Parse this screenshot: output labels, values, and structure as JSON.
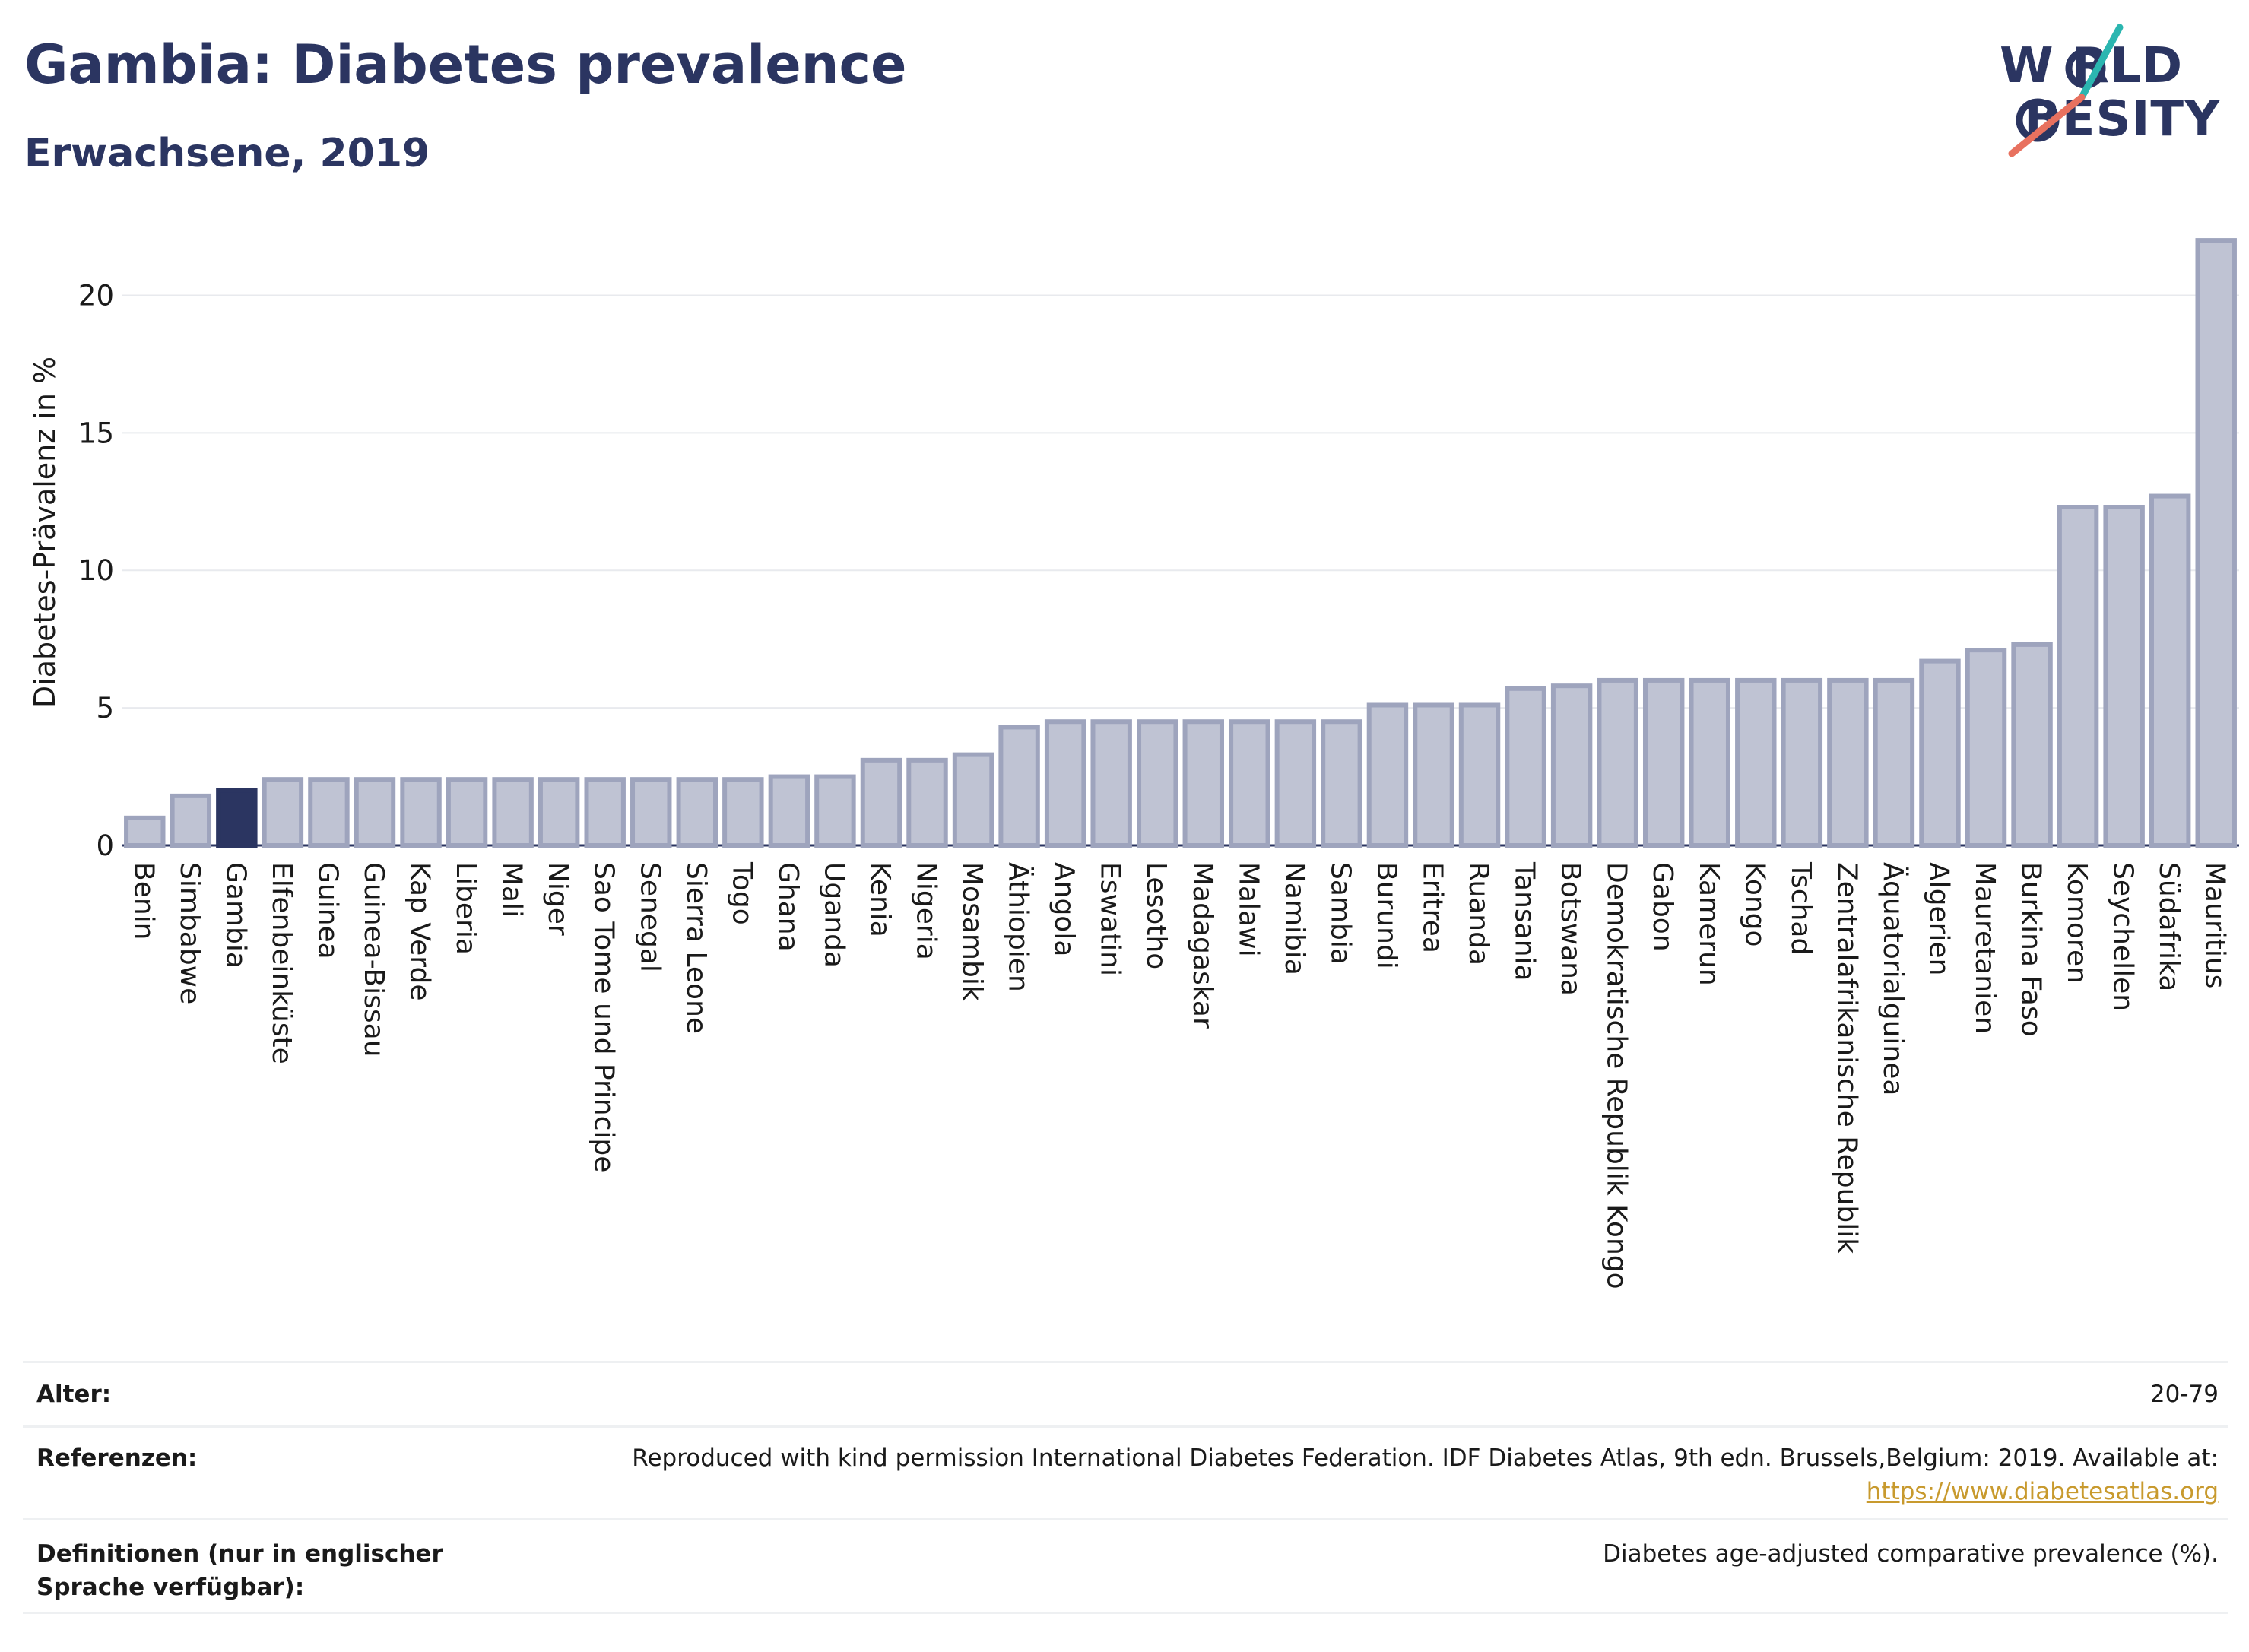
{
  "header": {
    "title": "Gambia: Diabetes prevalence",
    "subtitle": "Erwachsene, 2019"
  },
  "logo": {
    "line1": "WORLD",
    "line2": "OBESITY",
    "line1_display": "W RLD",
    "line2_display": "BESITY",
    "colors": {
      "text": "#2b3561",
      "accent_teal": "#2bb6b0",
      "accent_coral": "#e8715f"
    }
  },
  "chart_data": {
    "type": "bar",
    "title": "",
    "ylabel": "Diabetes-Prävalenz in %",
    "xlabel": "",
    "ylim": [
      0,
      22.5
    ],
    "yticks": [
      0,
      5,
      10,
      15,
      20
    ],
    "grid": true,
    "highlight": "Gambia",
    "colors": {
      "bar": "#bfc3d3",
      "bar_edge": "#9ea4bd",
      "highlight": "#2b3561"
    },
    "categories": [
      "Benin",
      "Simbabwe",
      "Gambia",
      "Elfenbeinküste",
      "Guinea",
      "Guinea-Bissau",
      "Kap Verde",
      "Liberia",
      "Mali",
      "Niger",
      "Sao Tome und Principe",
      "Senegal",
      "Sierra Leone",
      "Togo",
      "Ghana",
      "Uganda",
      "Kenia",
      "Nigeria",
      "Mosambik",
      "Äthiopien",
      "Angola",
      "Eswatini",
      "Lesotho",
      "Madagaskar",
      "Malawi",
      "Namibia",
      "Sambia",
      "Burundi",
      "Eritrea",
      "Ruanda",
      "Tansania",
      "Botswana",
      "Demokratische Republik Kongo",
      "Gabon",
      "Kamerun",
      "Kongo",
      "Tschad",
      "Zentralafrikanische Republik",
      "Äquatorialguinea",
      "Algerien",
      "Mauretanien",
      "Burkina Faso",
      "Komoren",
      "Seychellen",
      "Südafrika",
      "Mauritius"
    ],
    "values": [
      1.0,
      1.8,
      2.0,
      2.4,
      2.4,
      2.4,
      2.4,
      2.4,
      2.4,
      2.4,
      2.4,
      2.4,
      2.4,
      2.4,
      2.5,
      2.5,
      3.1,
      3.1,
      3.3,
      4.3,
      4.5,
      4.5,
      4.5,
      4.5,
      4.5,
      4.5,
      4.5,
      5.1,
      5.1,
      5.1,
      5.7,
      5.8,
      6.0,
      6.0,
      6.0,
      6.0,
      6.0,
      6.0,
      6.0,
      6.7,
      7.1,
      7.3,
      12.3,
      12.3,
      12.7,
      22.0
    ]
  },
  "info": {
    "age_label": "Alter:",
    "age_value": "20-79",
    "references_label": "Referenzen:",
    "references_text": "Reproduced with kind permission International Diabetes Federation. IDF Diabetes Atlas, 9th edn. Brussels,Belgium: 2019. Available at:",
    "references_link": "https://www.diabetesatlas.org",
    "definitions_label": "Definitionen (nur in englischer Sprache verfügbar):",
    "definitions_value": "Diabetes age-adjusted comparative prevalence (%)."
  }
}
